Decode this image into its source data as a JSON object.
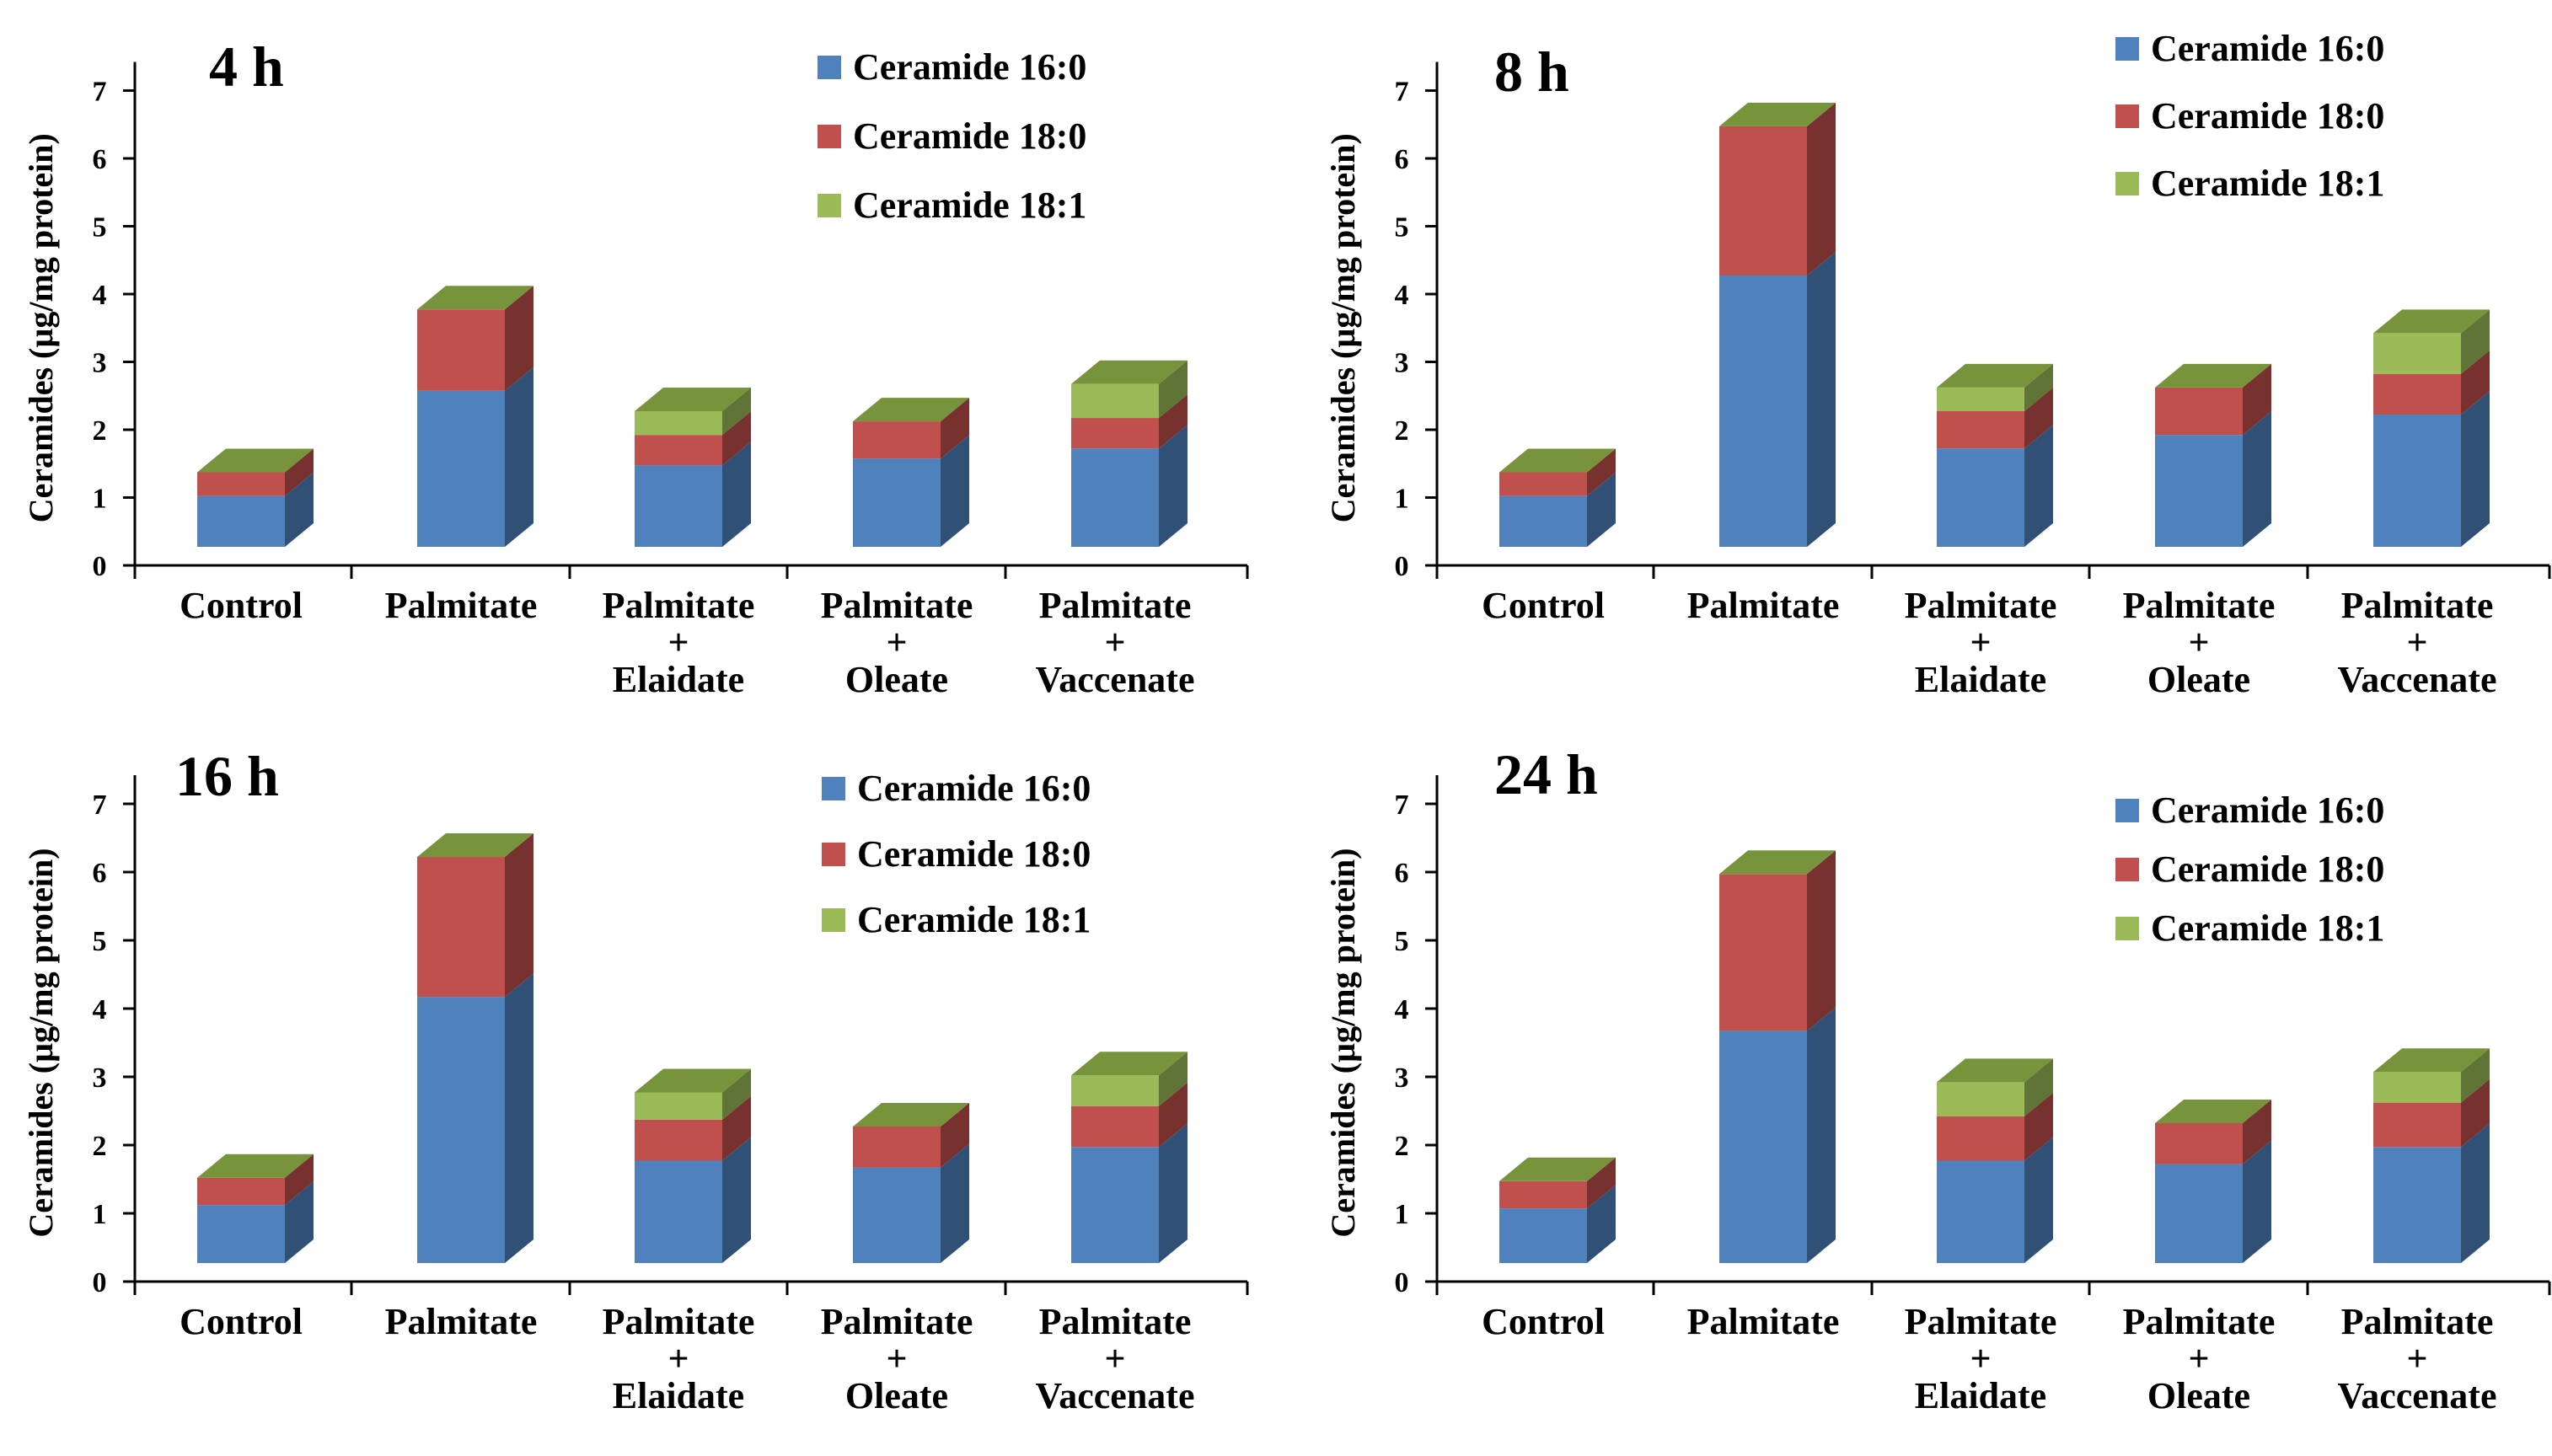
{
  "colors": {
    "ceramide_16_0": "#4F81BD",
    "ceramide_18_0": "#C0504D",
    "ceramide_18_1": "#9BBB59",
    "cap": "#77933C"
  },
  "chart_data": [
    {
      "type": "bar",
      "stacked": true,
      "title": "4 h",
      "ylabel": "Ceramides (µg/mg protein)",
      "ylim": [
        0,
        7
      ],
      "yticks": [
        0,
        1,
        2,
        3,
        4,
        5,
        6,
        7
      ],
      "categories": [
        "Control",
        "Palmitate",
        "Palmitate + Elaidate",
        "Palmitate + Oleate",
        "Palmitate + Vaccenate"
      ],
      "category_lines": [
        [
          "Control"
        ],
        [
          "Palmitate"
        ],
        [
          "Palmitate",
          "+",
          "Elaidate"
        ],
        [
          "Palmitate",
          "+",
          "Oleate"
        ],
        [
          "Palmitate",
          "+",
          "Vaccenate"
        ]
      ],
      "legend": [
        "Ceramide 16:0",
        "Ceramide 18:0",
        "Ceramide 18:1"
      ],
      "series": [
        {
          "name": "Ceramide 16:0",
          "values": [
            0.75,
            2.3,
            1.2,
            1.3,
            1.45
          ]
        },
        {
          "name": "Ceramide 18:0",
          "values": [
            0.35,
            1.2,
            0.45,
            0.55,
            0.45
          ]
        },
        {
          "name": "Ceramide 18:1",
          "values": [
            0.0,
            0.0,
            0.35,
            0.0,
            0.5
          ]
        }
      ]
    },
    {
      "type": "bar",
      "stacked": true,
      "title": "8 h",
      "ylabel": "Ceramides (µg/mg protein)",
      "ylim": [
        0,
        7
      ],
      "yticks": [
        0,
        1,
        2,
        3,
        4,
        5,
        6,
        7
      ],
      "categories": [
        "Control",
        "Palmitate",
        "Palmitate + Elaidate",
        "Palmitate + Oleate",
        "Palmitate + Vaccenate"
      ],
      "category_lines": [
        [
          "Control"
        ],
        [
          "Palmitate"
        ],
        [
          "Palmitate",
          "+",
          "Elaidate"
        ],
        [
          "Palmitate",
          "+",
          "Oleate"
        ],
        [
          "Palmitate",
          "+",
          "Vaccenate"
        ]
      ],
      "legend": [
        "Ceramide 16:0",
        "Ceramide 18:0",
        "Ceramide 18:1"
      ],
      "series": [
        {
          "name": "Ceramide 16:0",
          "values": [
            0.75,
            4.0,
            1.45,
            1.65,
            1.95
          ]
        },
        {
          "name": "Ceramide 18:0",
          "values": [
            0.35,
            2.2,
            0.55,
            0.7,
            0.6
          ]
        },
        {
          "name": "Ceramide 18:1",
          "values": [
            0.0,
            0.0,
            0.35,
            0.0,
            0.6
          ]
        }
      ]
    },
    {
      "type": "bar",
      "stacked": true,
      "title": "16 h",
      "ylabel": "Ceramides (µg/mg protein)",
      "ylim": [
        0,
        7
      ],
      "yticks": [
        0,
        1,
        2,
        3,
        4,
        5,
        6,
        7
      ],
      "categories": [
        "Control",
        "Palmitate",
        "Palmitate + Elaidate",
        "Palmitate + Oleate",
        "Palmitate + Vaccenate"
      ],
      "category_lines": [
        [
          "Control"
        ],
        [
          "Palmitate"
        ],
        [
          "Palmitate",
          "+",
          "Elaidate"
        ],
        [
          "Palmitate",
          "+",
          "Oleate"
        ],
        [
          "Palmitate",
          "+",
          "Vaccenate"
        ]
      ],
      "legend": [
        "Ceramide 16:0",
        "Ceramide 18:0",
        "Ceramide 18:1"
      ],
      "series": [
        {
          "name": "Ceramide 16:0",
          "values": [
            0.85,
            3.9,
            1.5,
            1.4,
            1.7
          ]
        },
        {
          "name": "Ceramide 18:0",
          "values": [
            0.4,
            2.05,
            0.6,
            0.6,
            0.6
          ]
        },
        {
          "name": "Ceramide 18:1",
          "values": [
            0.0,
            0.0,
            0.4,
            0.0,
            0.45
          ]
        }
      ]
    },
    {
      "type": "bar",
      "stacked": true,
      "title": "24 h",
      "ylabel": "Ceramides (µg/mg protein)",
      "ylim": [
        0,
        7
      ],
      "yticks": [
        0,
        1,
        2,
        3,
        4,
        5,
        6,
        7
      ],
      "categories": [
        "Control",
        "Palmitate",
        "Palmitate + Elaidate",
        "Palmitate + Oleate",
        "Palmitate + Vaccenate"
      ],
      "category_lines": [
        [
          "Control"
        ],
        [
          "Palmitate"
        ],
        [
          "Palmitate",
          "+",
          "Elaidate"
        ],
        [
          "Palmitate",
          "+",
          "Oleate"
        ],
        [
          "Palmitate",
          "+",
          "Vaccenate"
        ]
      ],
      "legend": [
        "Ceramide 16:0",
        "Ceramide 18:0",
        "Ceramide 18:1"
      ],
      "series": [
        {
          "name": "Ceramide 16:0",
          "values": [
            0.8,
            3.4,
            1.5,
            1.45,
            1.7
          ]
        },
        {
          "name": "Ceramide 18:0",
          "values": [
            0.4,
            2.3,
            0.65,
            0.6,
            0.65
          ]
        },
        {
          "name": "Ceramide 18:1",
          "values": [
            0.0,
            0.0,
            0.5,
            0.0,
            0.45
          ]
        }
      ]
    }
  ]
}
